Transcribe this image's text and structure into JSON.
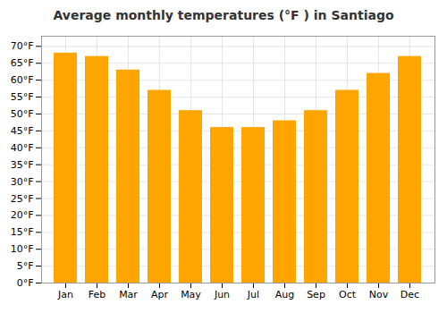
{
  "chart_data": {
    "type": "bar",
    "title": "Average monthly temperatures (°F ) in Santiago",
    "categories": [
      "Jan",
      "Feb",
      "Mar",
      "Apr",
      "May",
      "Jun",
      "Jul",
      "Aug",
      "Sep",
      "Oct",
      "Nov",
      "Dec"
    ],
    "values": [
      68,
      67,
      63,
      57,
      51,
      46,
      46,
      48,
      51,
      57,
      62,
      67
    ],
    "color": "#FFA500",
    "ylim": [
      0,
      73
    ],
    "yticks": [
      {
        "value": 0,
        "label": "0°F"
      },
      {
        "value": 5,
        "label": "5°F"
      },
      {
        "value": 10,
        "label": "10°F"
      },
      {
        "value": 15,
        "label": "15°F"
      },
      {
        "value": 20,
        "label": "20°F"
      },
      {
        "value": 25,
        "label": "25°F"
      },
      {
        "value": 30,
        "label": "30°F"
      },
      {
        "value": 35,
        "label": "35°F"
      },
      {
        "value": 40,
        "label": "40°F"
      },
      {
        "value": 45,
        "label": "45°F"
      },
      {
        "value": 50,
        "label": "50°F"
      },
      {
        "value": 55,
        "label": "55°F"
      },
      {
        "value": 60,
        "label": "60°F"
      },
      {
        "value": 65,
        "label": "65°F"
      },
      {
        "value": 70,
        "label": "70°F"
      }
    ],
    "grid": true
  }
}
